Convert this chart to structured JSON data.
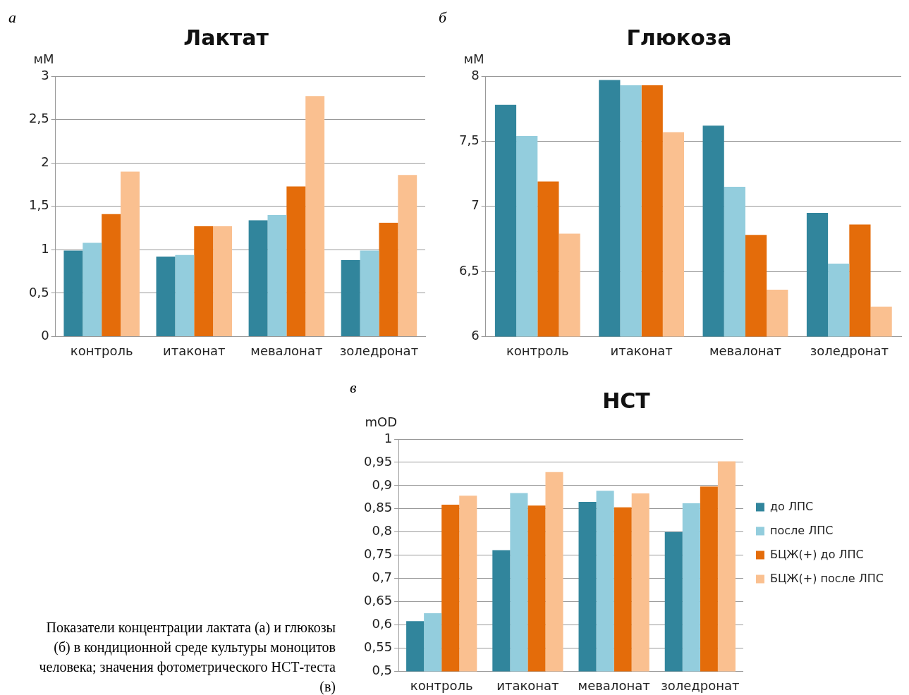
{
  "chart_data": [
    {
      "type": "bar",
      "title": "Лактат",
      "ylabel": "мМ",
      "annotations": [
        "а"
      ],
      "categories": [
        "контроль",
        "итаконат",
        "мевалонат",
        "золедронат"
      ],
      "ylim": [
        0,
        3
      ],
      "yticks": [
        0,
        {
          "value": 0.5,
          "label": "0,5"
        },
        1,
        {
          "value": 1.5,
          "label": "1,5"
        },
        2,
        {
          "value": 2.5,
          "label": "2,5"
        },
        3
      ],
      "grid": "y",
      "series": [
        {
          "color": "#31859c",
          "values": [
            0.99,
            0.92,
            1.34,
            0.88
          ]
        },
        {
          "color": "#93cddd",
          "values": [
            1.08,
            0.94,
            1.4,
            0.99
          ]
        },
        {
          "color": "#e46c0a",
          "values": [
            1.41,
            1.27,
            1.73,
            1.31
          ]
        },
        {
          "color": "#fac090",
          "values": [
            1.9,
            1.27,
            2.77,
            1.86
          ]
        }
      ]
    },
    {
      "type": "bar",
      "title": "Глюкоза",
      "ylabel": "мМ",
      "annotations": [
        "б"
      ],
      "categories": [
        "контроль",
        "итаконат",
        "мевалонат",
        "золедронат"
      ],
      "ylim": [
        6,
        8
      ],
      "yticks": [
        6,
        {
          "value": 6.5,
          "label": "6,5"
        },
        7,
        {
          "value": 7.5,
          "label": "7,5"
        },
        8
      ],
      "grid": "y",
      "series": [
        {
          "color": "#31859c",
          "values": [
            7.78,
            7.97,
            7.62,
            6.95
          ]
        },
        {
          "color": "#93cddd",
          "values": [
            7.54,
            7.93,
            7.15,
            6.56
          ]
        },
        {
          "color": "#e46c0a",
          "values": [
            7.19,
            7.93,
            6.78,
            6.86
          ]
        },
        {
          "color": "#fac090",
          "values": [
            6.79,
            7.57,
            6.36,
            6.23
          ]
        }
      ]
    },
    {
      "type": "bar",
      "title": "НСТ",
      "ylabel": "mOD",
      "annotations": [
        "в",
        "Показатели концентрации лактата (а) и глюкозы (б) в кондиционной среде культуры моноцитов человека; значения фотометрического НСТ-теста (в)"
      ],
      "categories": [
        "контроль",
        "итаконат",
        "мевалонат",
        "золедронат"
      ],
      "ylim": [
        0.5,
        1
      ],
      "yticks": [
        {
          "value": 0.5,
          "label": "0,5"
        },
        {
          "value": 0.55,
          "label": "0,55"
        },
        {
          "value": 0.6,
          "label": "0,6"
        },
        {
          "value": 0.65,
          "label": "0,65"
        },
        {
          "value": 0.7,
          "label": "0,7"
        },
        {
          "value": 0.75,
          "label": "0,75"
        },
        {
          "value": 0.8,
          "label": "0,8"
        },
        {
          "value": 0.85,
          "label": "0,85"
        },
        {
          "value": 0.9,
          "label": "0,9"
        },
        {
          "value": 0.95,
          "label": "0,95"
        },
        1
      ],
      "grid": "y",
      "legend": "right",
      "series": [
        {
          "name": "до ЛПС",
          "color": "#31859c",
          "values": [
            0.608,
            0.761,
            0.865,
            0.8
          ]
        },
        {
          "name": "после ЛПС",
          "color": "#93cddd",
          "values": [
            0.625,
            0.884,
            0.889,
            0.862
          ]
        },
        {
          "name": "БЦЖ(+) до ЛПС",
          "color": "#e46c0a",
          "values": [
            0.859,
            0.857,
            0.853,
            0.898
          ]
        },
        {
          "name": "БЦЖ(+) после ЛПС",
          "color": "#fac090",
          "values": [
            0.878,
            0.929,
            0.883,
            0.952
          ]
        }
      ]
    }
  ]
}
